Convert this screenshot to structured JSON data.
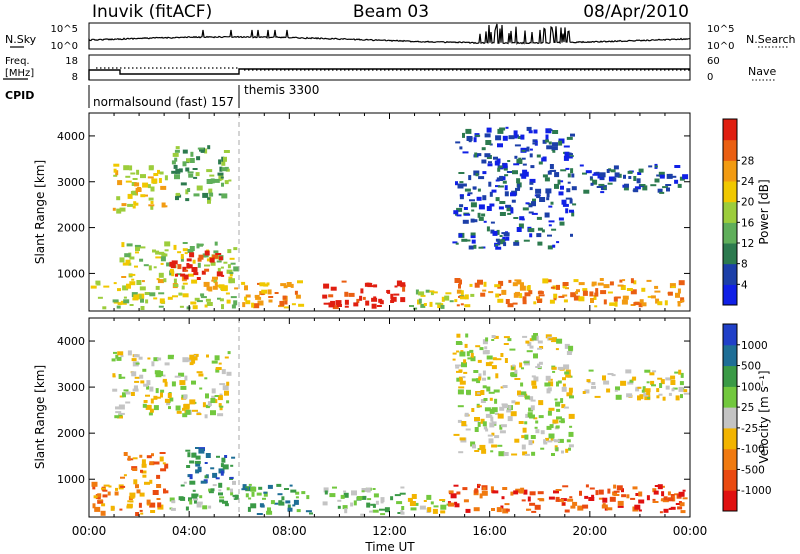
{
  "header": {
    "site": "Inuvik (fitACF)",
    "beam": "Beam 03",
    "date": "08/Apr/2010"
  },
  "summary_panels": {
    "nsky": {
      "left_label": "N.Sky",
      "right_label": "N.Search",
      "left_ticks": [
        "10^5",
        "10^0"
      ],
      "right_ticks": [
        "10^5",
        "10^0"
      ]
    },
    "freq": {
      "left_label_line1": "Freq.",
      "left_label_line2": "[MHz]",
      "right_label": "Nave",
      "left_ticks": [
        "18",
        "8"
      ],
      "right_ticks": [
        "60",
        "0"
      ]
    },
    "cpid": {
      "label": "CPID",
      "modes": [
        {
          "name": "normalsound (fast) 157",
          "start_hour": 0
        },
        {
          "name": "themis 3300",
          "start_hour": 6
        }
      ]
    }
  },
  "time_axis": {
    "label": "Time UT",
    "ticks": [
      "00:00",
      "04:00",
      "08:00",
      "12:00",
      "16:00",
      "20:00",
      "00:00"
    ]
  },
  "chart_data": [
    {
      "type": "heatmap",
      "panel": "power",
      "ylabel": "Slant Range [km]",
      "xlim_hours": [
        0,
        24
      ],
      "ylim_km": [
        180,
        4500
      ],
      "yticks": [
        1000,
        2000,
        3000,
        4000
      ],
      "colorbar": {
        "label": "Power [dB]",
        "ticks": [
          "4",
          "8",
          "12",
          "16",
          "20",
          "24",
          "28"
        ],
        "colors": [
          "#1020e6",
          "#1c3fa8",
          "#2c7a4e",
          "#5fae5a",
          "#9ccd3c",
          "#f0c800",
          "#f29b12",
          "#ea5f12",
          "#e01e10"
        ]
      },
      "regions": [
        {
          "t0": 0.0,
          "t1": 6.0,
          "r0": 200,
          "r1": 600,
          "v": 4
        },
        {
          "t0": 0.0,
          "t1": 6.0,
          "r0": 600,
          "r1": 950,
          "v": 5
        },
        {
          "t0": 1.2,
          "t1": 6.0,
          "r0": 900,
          "r1": 1700,
          "v": 4
        },
        {
          "t0": 3.2,
          "t1": 5.4,
          "r0": 850,
          "r1": 1500,
          "v": 8
        },
        {
          "t0": 0.9,
          "t1": 3.2,
          "r0": 2300,
          "r1": 3400,
          "v": 5
        },
        {
          "t0": 3.2,
          "t1": 5.7,
          "r0": 2500,
          "r1": 3800,
          "v": 3
        },
        {
          "t0": 6.0,
          "t1": 8.7,
          "r0": 200,
          "r1": 850,
          "v": 6
        },
        {
          "t0": 9.3,
          "t1": 12.7,
          "r0": 200,
          "r1": 850,
          "v": 8
        },
        {
          "t0": 12.7,
          "t1": 15.5,
          "r0": 200,
          "r1": 650,
          "v": 4
        },
        {
          "t0": 14.3,
          "t1": 24.0,
          "r0": 250,
          "r1": 900,
          "v": 6
        },
        {
          "t0": 14.5,
          "t1": 19.5,
          "r0": 1500,
          "r1": 4200,
          "v": 1
        },
        {
          "t0": 19.5,
          "t1": 24.0,
          "r0": 2700,
          "r1": 3400,
          "v": 1
        }
      ]
    },
    {
      "type": "heatmap",
      "panel": "velocity",
      "ylabel": "Slant Range [km]",
      "xlim_hours": [
        0,
        24
      ],
      "ylim_km": [
        180,
        4500
      ],
      "yticks": [
        1000,
        2000,
        3000,
        4000
      ],
      "colorbar": {
        "label": "Velocity [m s⁻¹]",
        "ticks": [
          "1000",
          "500",
          "100",
          "25",
          "-25",
          "-100",
          "-500",
          "-1000"
        ],
        "colors": [
          "#2040c8",
          "#1e6e96",
          "#3a9a46",
          "#72c83e",
          "#c4c4c4",
          "#f2b400",
          "#f07a10",
          "#ea4a10",
          "#e01010"
        ]
      },
      "regions": [
        {
          "t0": 0.0,
          "t1": 3.2,
          "r0": 200,
          "r1": 1000,
          "v": 6
        },
        {
          "t0": 1.2,
          "t1": 3.2,
          "r0": 1000,
          "r1": 1600,
          "v": 6
        },
        {
          "t0": 3.2,
          "t1": 6.0,
          "r0": 300,
          "r1": 1000,
          "v": 3
        },
        {
          "t0": 3.8,
          "t1": 6.0,
          "r0": 900,
          "r1": 1700,
          "v": 1
        },
        {
          "t0": 0.9,
          "t1": 5.7,
          "r0": 2300,
          "r1": 3800,
          "v": 4
        },
        {
          "t0": 6.0,
          "t1": 9.0,
          "r0": 200,
          "r1": 900,
          "v": 2
        },
        {
          "t0": 9.3,
          "t1": 12.7,
          "r0": 200,
          "r1": 850,
          "v": 3
        },
        {
          "t0": 12.7,
          "t1": 14.5,
          "r0": 200,
          "r1": 700,
          "v": 4
        },
        {
          "t0": 14.3,
          "t1": 24.0,
          "r0": 250,
          "r1": 900,
          "v": 7
        },
        {
          "t0": 14.5,
          "t1": 19.5,
          "r0": 1500,
          "r1": 4200,
          "v": 4
        },
        {
          "t0": 19.5,
          "t1": 24.0,
          "r0": 2700,
          "r1": 3400,
          "v": 4
        }
      ]
    }
  ]
}
